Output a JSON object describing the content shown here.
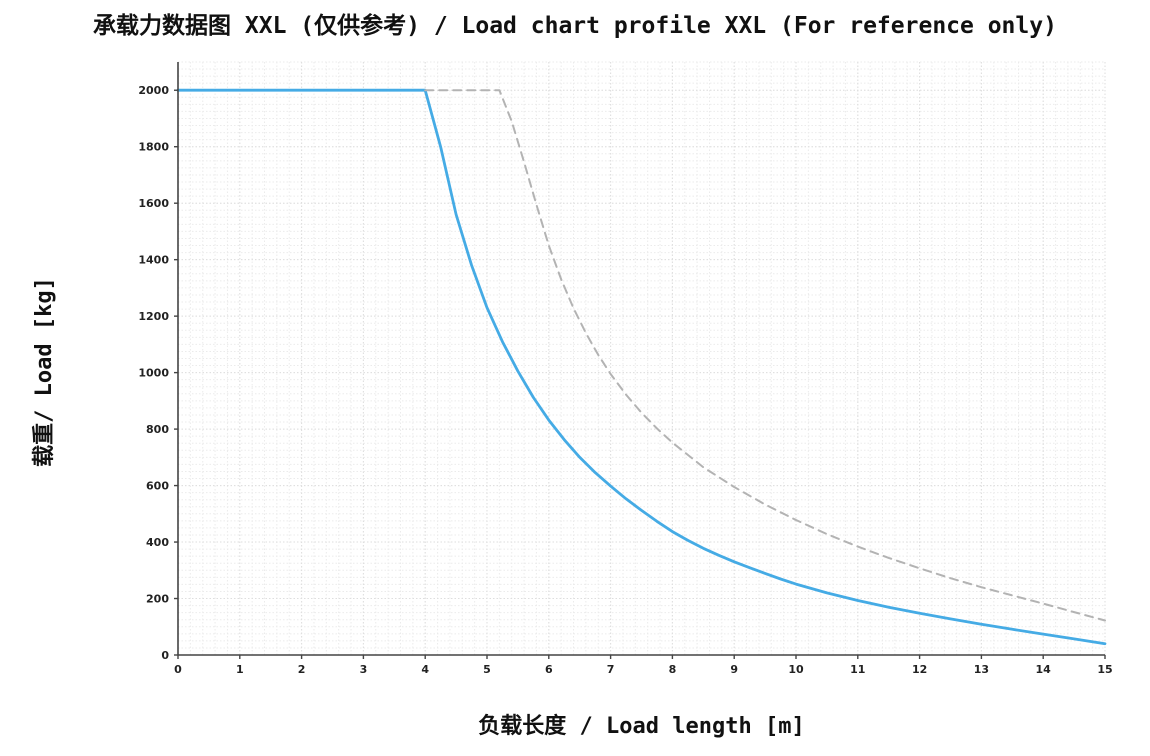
{
  "header": {
    "title": "承载力数据图 XXL (仅供参考) / Load chart  profile XXL (For reference only)"
  },
  "chart_data": {
    "type": "line",
    "title": "承载力数据图 XXL (仅供参考) / Load chart  profile XXL (For reference only)",
    "xlabel": "负载长度 / Load length [m]",
    "ylabel": "载重/ Load [kg]",
    "xlim": [
      0,
      15
    ],
    "ylim": [
      0,
      2100
    ],
    "x_ticks": [
      0,
      1,
      2,
      3,
      4,
      5,
      6,
      7,
      8,
      9,
      10,
      11,
      12,
      13,
      14,
      15
    ],
    "y_ticks": [
      0,
      200,
      400,
      600,
      800,
      1000,
      1200,
      1400,
      1600,
      1800,
      2000
    ],
    "grid": {
      "minor_x_step": 0.2,
      "minor_y_step": 25,
      "major_x_step": 1,
      "major_y_step": 200,
      "style": "dotted",
      "minor_color": "#ebebeb",
      "major_color": "#dedede"
    },
    "legend": "none",
    "colors": {
      "solid_line": "#45abe5",
      "dashed_line": "#b3b3b3",
      "axis": "#444444"
    },
    "series": [
      {
        "name": "load-curve-solid",
        "style": "solid",
        "color": "#45abe5",
        "points": [
          [
            0,
            2000
          ],
          [
            4,
            2000
          ],
          [
            4.25,
            1800
          ],
          [
            4.5,
            1560
          ],
          [
            4.75,
            1380
          ],
          [
            5,
            1230
          ],
          [
            5.25,
            1110
          ],
          [
            5.5,
            1005
          ],
          [
            5.75,
            912
          ],
          [
            6,
            832
          ],
          [
            6.25,
            762
          ],
          [
            6.5,
            700
          ],
          [
            6.75,
            646
          ],
          [
            7,
            598
          ],
          [
            7.25,
            553
          ],
          [
            7.5,
            512
          ],
          [
            7.75,
            473
          ],
          [
            8,
            437
          ],
          [
            8.25,
            406
          ],
          [
            8.5,
            378
          ],
          [
            8.75,
            353
          ],
          [
            9,
            330
          ],
          [
            9.25,
            309
          ],
          [
            9.5,
            289
          ],
          [
            9.75,
            269
          ],
          [
            10,
            251
          ],
          [
            10.5,
            220
          ],
          [
            11,
            193
          ],
          [
            11.5,
            169
          ],
          [
            12,
            148
          ],
          [
            12.5,
            128
          ],
          [
            13,
            109
          ],
          [
            13.5,
            91
          ],
          [
            14,
            74
          ],
          [
            14.5,
            57
          ],
          [
            15,
            40
          ]
        ]
      },
      {
        "name": "reference-curve-dashed",
        "style": "dashed",
        "color": "#b3b3b3",
        "points": [
          [
            4,
            2000
          ],
          [
            5.2,
            2000
          ],
          [
            5.4,
            1890
          ],
          [
            5.6,
            1745
          ],
          [
            5.8,
            1595
          ],
          [
            6,
            1450
          ],
          [
            6.2,
            1330
          ],
          [
            6.4,
            1228
          ],
          [
            6.6,
            1140
          ],
          [
            6.8,
            1063
          ],
          [
            7,
            995
          ],
          [
            7.25,
            922
          ],
          [
            7.5,
            858
          ],
          [
            7.75,
            802
          ],
          [
            8,
            752
          ],
          [
            8.5,
            665
          ],
          [
            9,
            595
          ],
          [
            9.5,
            533
          ],
          [
            10,
            478
          ],
          [
            10.5,
            428
          ],
          [
            11,
            384
          ],
          [
            11.5,
            344
          ],
          [
            12,
            307
          ],
          [
            12.5,
            272
          ],
          [
            13,
            240
          ],
          [
            13.5,
            211
          ],
          [
            14,
            182
          ],
          [
            14.5,
            152
          ],
          [
            15,
            122
          ]
        ]
      }
    ]
  }
}
